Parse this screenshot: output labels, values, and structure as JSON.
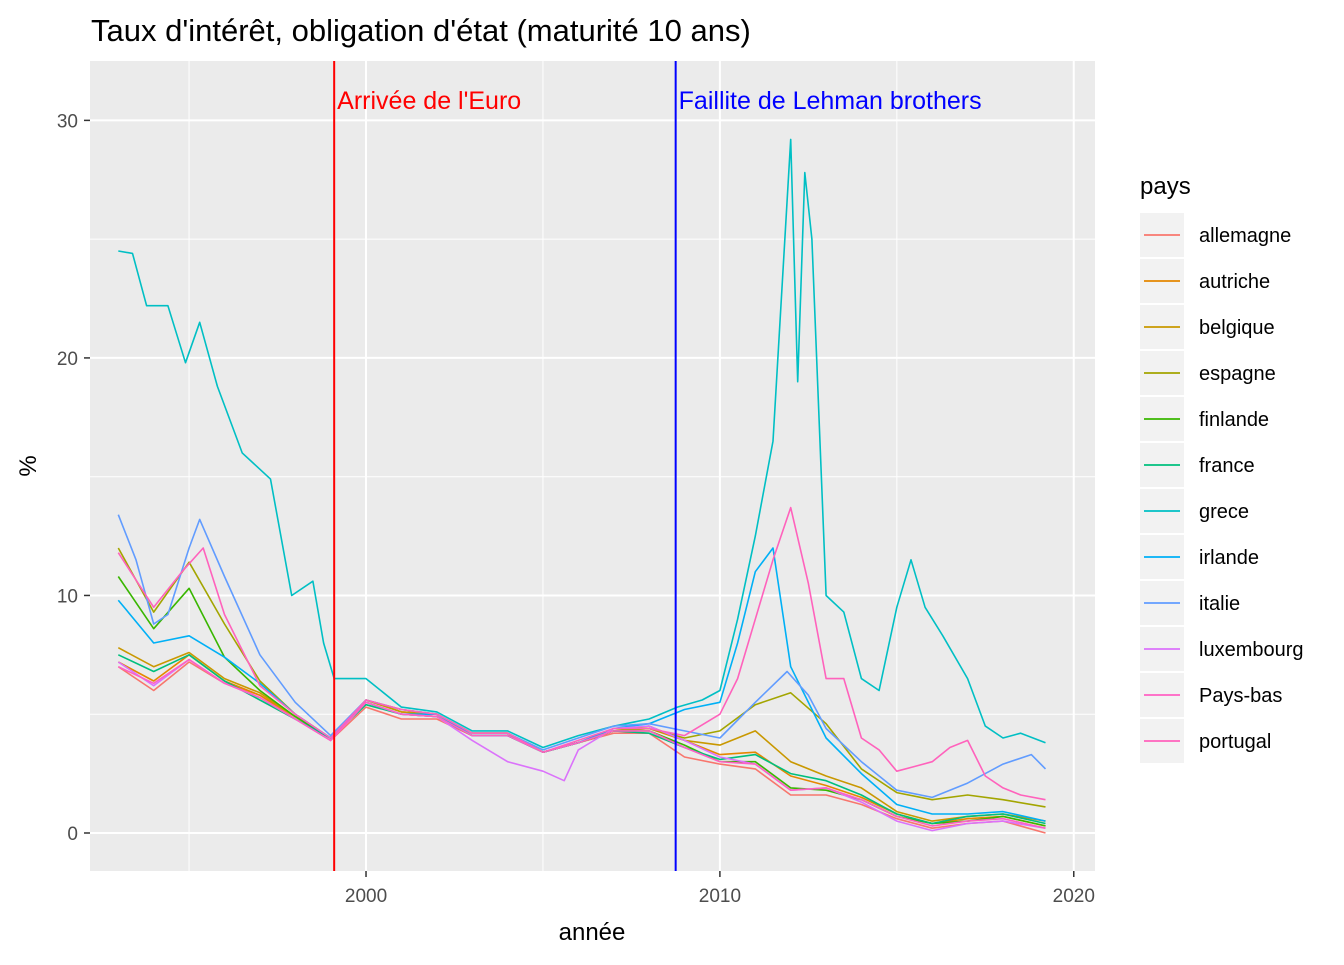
{
  "chart_data": {
    "type": "line",
    "title": "Taux d'intérêt, obligation d'état (maturité 10 ans)",
    "xlabel": "année",
    "ylabel": "%",
    "xlim": [
      1992.2,
      2020.6
    ],
    "ylim": [
      -1.6,
      32.5
    ],
    "x_ticks": [
      2000,
      2010,
      2020
    ],
    "y_ticks": [
      0,
      10,
      20,
      30
    ],
    "x_tick_labels": [
      "2000",
      "2010",
      "2020"
    ],
    "y_tick_labels": [
      "0",
      "10",
      "20",
      "30"
    ],
    "grid": true,
    "legend_title": "pays",
    "legend_position": "right",
    "annotations": [
      {
        "x": 1999.1,
        "label": "Arrivée de l'Euro",
        "color": "#FF0000"
      },
      {
        "x": 2008.75,
        "label": "Faillite de Lehman brothers",
        "color": "#0000FF"
      }
    ],
    "series": [
      {
        "name": "allemagne",
        "color": "#F8766D",
        "x": [
          1993,
          1994,
          1995,
          1996,
          1997,
          1998,
          1999,
          2000,
          2001,
          2002,
          2003,
          2004,
          2005,
          2006,
          2007,
          2008,
          2009,
          2010,
          2011,
          2012,
          2013,
          2014,
          2015,
          2016,
          2017,
          2018,
          2019.2
        ],
        "values": [
          7.0,
          6.0,
          7.2,
          6.3,
          5.8,
          4.8,
          3.9,
          5.3,
          4.8,
          4.8,
          4.1,
          4.1,
          3.4,
          3.8,
          4.2,
          4.2,
          3.2,
          2.9,
          2.7,
          1.6,
          1.6,
          1.2,
          0.6,
          0.2,
          0.4,
          0.5,
          0.0
        ]
      },
      {
        "name": "autriche",
        "color": "#E58700",
        "x": [
          1993,
          1994,
          1995,
          1996,
          1997,
          1998,
          1999,
          2000,
          2001,
          2002,
          2003,
          2004,
          2005,
          2006,
          2007,
          2008,
          2009,
          2010,
          2011,
          2012,
          2013,
          2014,
          2015,
          2016,
          2017,
          2018,
          2019.2
        ],
        "values": [
          7.2,
          6.4,
          7.5,
          6.4,
          5.8,
          4.9,
          4.0,
          5.6,
          5.1,
          5.0,
          4.2,
          4.2,
          3.4,
          3.8,
          4.3,
          4.4,
          3.9,
          3.3,
          3.4,
          2.4,
          2.0,
          1.5,
          0.8,
          0.4,
          0.6,
          0.7,
          0.3
        ]
      },
      {
        "name": "belgique",
        "color": "#C99800",
        "x": [
          1993,
          1994,
          1995,
          1996,
          1997,
          1998,
          1999,
          2000,
          2001,
          2002,
          2003,
          2004,
          2005,
          2006,
          2007,
          2008,
          2009,
          2010,
          2011,
          2012,
          2013,
          2014,
          2015,
          2016,
          2017,
          2018,
          2019.2
        ],
        "values": [
          7.8,
          7.0,
          7.6,
          6.5,
          5.9,
          4.9,
          4.0,
          5.6,
          5.1,
          5.0,
          4.2,
          4.2,
          3.4,
          3.8,
          4.3,
          4.5,
          3.9,
          3.7,
          4.3,
          3.0,
          2.4,
          1.9,
          0.9,
          0.5,
          0.7,
          0.8,
          0.5
        ]
      },
      {
        "name": "espagne",
        "color": "#A3A500",
        "x": [
          1993,
          1994,
          1995,
          1996,
          1997,
          1998,
          1999,
          2000,
          2001,
          2002,
          2003,
          2004,
          2005,
          2006,
          2007,
          2008,
          2009,
          2010,
          2011,
          2012,
          2013,
          2014,
          2015,
          2016,
          2017,
          2018,
          2019.2
        ],
        "values": [
          12.0,
          9.3,
          11.4,
          8.8,
          6.4,
          5.0,
          4.0,
          5.6,
          5.2,
          5.0,
          4.2,
          4.2,
          3.4,
          3.8,
          4.3,
          4.4,
          4.0,
          4.3,
          5.4,
          5.9,
          4.6,
          2.7,
          1.7,
          1.4,
          1.6,
          1.4,
          1.1
        ]
      },
      {
        "name": "finlande",
        "color": "#39B600",
        "x": [
          1993,
          1994,
          1995,
          1996,
          1997,
          1998,
          1999,
          2000,
          2001,
          2002,
          2003,
          2004,
          2005,
          2006,
          2007,
          2008,
          2009,
          2010,
          2011,
          2012,
          2013,
          2014,
          2015,
          2016,
          2017,
          2018,
          2019.2
        ],
        "values": [
          10.8,
          8.6,
          10.3,
          7.4,
          6.0,
          4.9,
          4.0,
          5.5,
          5.0,
          4.9,
          4.1,
          4.1,
          3.4,
          3.8,
          4.3,
          4.3,
          3.7,
          3.0,
          3.0,
          1.9,
          1.8,
          1.4,
          0.7,
          0.4,
          0.5,
          0.7,
          0.3
        ]
      },
      {
        "name": "france",
        "color": "#00BF7D",
        "x": [
          1993,
          1994,
          1995,
          1996,
          1997,
          1998,
          1999,
          2000,
          2001,
          2002,
          2003,
          2004,
          2005,
          2006,
          2007,
          2008,
          2009,
          2010,
          2011,
          2012,
          2013,
          2014,
          2015,
          2016,
          2017,
          2018,
          2019.2
        ],
        "values": [
          7.5,
          6.8,
          7.5,
          6.4,
          5.6,
          4.8,
          4.0,
          5.4,
          5.0,
          4.9,
          4.1,
          4.1,
          3.4,
          3.8,
          4.3,
          4.2,
          3.6,
          3.1,
          3.3,
          2.5,
          2.2,
          1.6,
          0.8,
          0.4,
          0.7,
          0.8,
          0.4
        ]
      },
      {
        "name": "grece",
        "color": "#00BFC4",
        "x": [
          1993,
          1993.4,
          1993.8,
          1994.4,
          1994.9,
          1995.3,
          1995.8,
          1996.5,
          1997.3,
          1997.9,
          1998.5,
          1998.8,
          1999.1,
          2000,
          2001,
          2002,
          2003,
          2004,
          2005,
          2006,
          2007,
          2008,
          2008.8,
          2009.5,
          2010,
          2010.5,
          2011,
          2011.5,
          2012,
          2012.2,
          2012.4,
          2012.6,
          2013,
          2013.5,
          2014,
          2014.5,
          2015,
          2015.4,
          2015.8,
          2016.3,
          2017,
          2017.5,
          2018,
          2018.5,
          2019.2
        ],
        "values": [
          24.5,
          24.4,
          22.2,
          22.2,
          19.8,
          21.5,
          18.8,
          16.0,
          14.9,
          10.0,
          10.6,
          8.0,
          6.5,
          6.5,
          5.3,
          5.1,
          4.3,
          4.3,
          3.6,
          4.1,
          4.5,
          4.8,
          5.3,
          5.6,
          6.0,
          9.0,
          12.5,
          16.5,
          29.2,
          19.0,
          27.8,
          25.0,
          10.0,
          9.3,
          6.5,
          6.0,
          9.5,
          11.5,
          9.5,
          8.3,
          6.5,
          4.5,
          4.0,
          4.2,
          3.8
        ]
      },
      {
        "name": "irlande",
        "color": "#00B0F6",
        "x": [
          1993,
          1994,
          1995,
          1996,
          1997,
          1998,
          1999,
          2000,
          2001,
          2002,
          2003,
          2004,
          2005,
          2006,
          2007,
          2008,
          2009,
          2010,
          2010.5,
          2011,
          2011.5,
          2012,
          2013,
          2014,
          2015,
          2016,
          2017,
          2018,
          2019.2
        ],
        "values": [
          9.8,
          8.0,
          8.3,
          7.4,
          6.3,
          5.0,
          4.0,
          5.5,
          5.0,
          5.0,
          4.1,
          4.1,
          3.4,
          3.8,
          4.4,
          4.6,
          5.2,
          5.5,
          8.0,
          11.0,
          12.0,
          7.0,
          4.0,
          2.5,
          1.2,
          0.8,
          0.8,
          0.9,
          0.5
        ]
      },
      {
        "name": "italie",
        "color": "#619CFF",
        "x": [
          1993,
          1993.5,
          1994,
          1994.4,
          1995,
          1995.3,
          1996,
          1997,
          1998,
          1999,
          2000,
          2001,
          2002,
          2003,
          2004,
          2005,
          2006,
          2007,
          2008,
          2009,
          2010,
          2011,
          2011.9,
          2012.5,
          2013,
          2014,
          2015,
          2016,
          2017,
          2018,
          2018.8,
          2019.2
        ],
        "values": [
          13.4,
          11.5,
          8.8,
          9.2,
          12.0,
          13.2,
          10.8,
          7.5,
          5.5,
          4.1,
          5.6,
          5.2,
          5.0,
          4.2,
          4.2,
          3.5,
          4.0,
          4.5,
          4.6,
          4.3,
          4.0,
          5.5,
          6.8,
          5.8,
          4.4,
          3.0,
          1.8,
          1.5,
          2.1,
          2.9,
          3.3,
          2.7
        ]
      },
      {
        "name": "luxembourg",
        "color": "#DB72FB",
        "x": [
          1993,
          1994,
          1995,
          1996,
          1997,
          1998,
          1999,
          2000,
          2001,
          2002,
          2003,
          2004,
          2005,
          2005.6,
          2006,
          2007,
          2008,
          2009,
          2010,
          2011,
          2012,
          2013,
          2014,
          2015,
          2016,
          2017,
          2018,
          2019.2
        ],
        "values": [
          7.2,
          6.2,
          7.3,
          6.3,
          5.7,
          4.8,
          3.9,
          5.5,
          5.0,
          4.9,
          3.9,
          3.0,
          2.6,
          2.2,
          3.5,
          4.4,
          4.5,
          3.9,
          3.2,
          2.9,
          1.8,
          1.9,
          1.3,
          0.5,
          0.1,
          0.4,
          0.5,
          0.2
        ]
      },
      {
        "name": "Pays-bas",
        "color": "#FF61C3",
        "x": [
          1993,
          1994,
          1995,
          1996,
          1997,
          1998,
          1999,
          2000,
          2001,
          2002,
          2003,
          2004,
          2005,
          2006,
          2007,
          2008,
          2009,
          2010,
          2011,
          2012,
          2013,
          2014,
          2015,
          2016,
          2017,
          2018,
          2019.2
        ],
        "values": [
          7.0,
          6.3,
          7.3,
          6.3,
          5.7,
          4.8,
          3.9,
          5.5,
          5.0,
          4.9,
          4.1,
          4.1,
          3.4,
          3.8,
          4.3,
          4.3,
          3.6,
          3.0,
          2.9,
          1.8,
          1.9,
          1.4,
          0.7,
          0.3,
          0.5,
          0.6,
          0.2
        ]
      },
      {
        "name": "portugal",
        "color": "#FF62BC",
        "x": [
          1993,
          1994,
          1994.8,
          1995.4,
          1996,
          1997,
          1998,
          1999,
          2000,
          2001,
          2002,
          2003,
          2004,
          2005,
          2006,
          2007,
          2008,
          2009,
          2010,
          2010.5,
          2011,
          2011.5,
          2012,
          2012.5,
          2013,
          2013.5,
          2014,
          2014.5,
          2015,
          2015.5,
          2016,
          2016.5,
          2017,
          2017.5,
          2018,
          2018.5,
          2019.2
        ],
        "values": [
          11.8,
          9.5,
          11.0,
          12.0,
          9.2,
          6.2,
          5.0,
          4.0,
          5.6,
          5.2,
          5.0,
          4.2,
          4.2,
          3.4,
          3.9,
          4.4,
          4.4,
          4.1,
          5.0,
          6.5,
          9.0,
          11.5,
          13.7,
          10.5,
          6.5,
          6.5,
          4.0,
          3.5,
          2.6,
          2.8,
          3.0,
          3.6,
          3.9,
          2.4,
          1.9,
          1.6,
          1.4
        ]
      }
    ]
  }
}
